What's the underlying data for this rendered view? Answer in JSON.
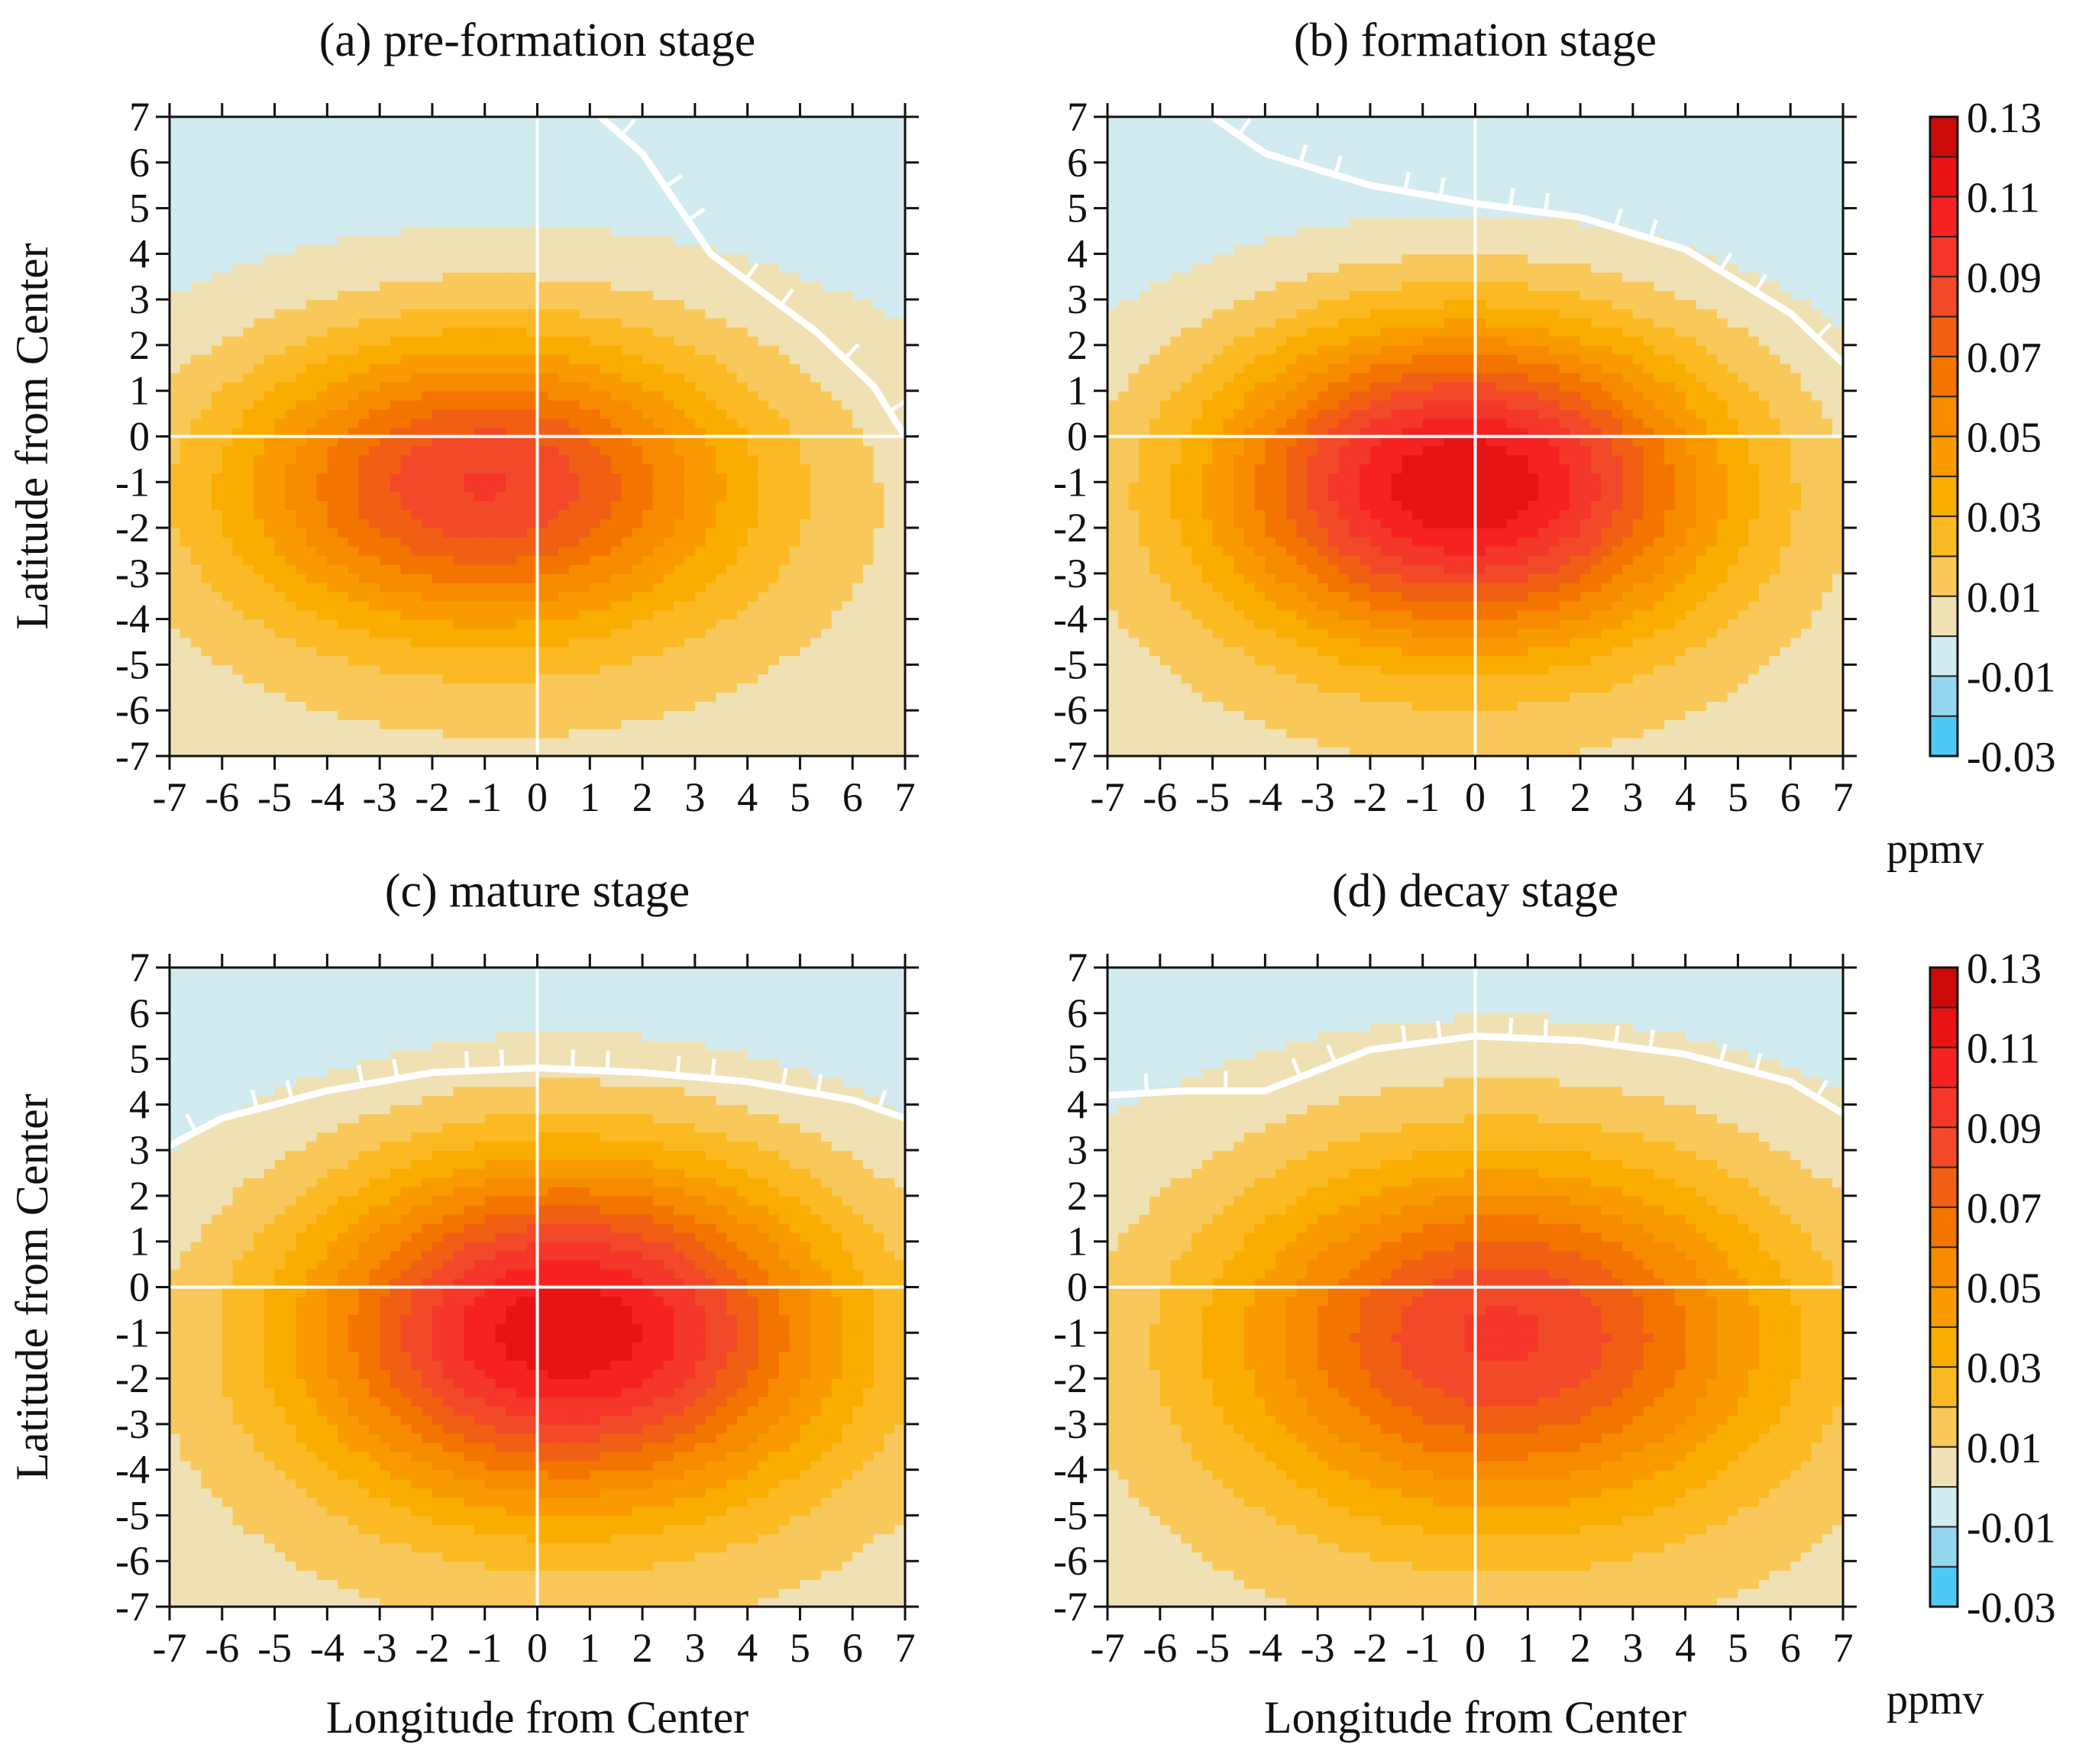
{
  "chart_data": {
    "type": "heatmap",
    "units": "ppmv",
    "x_axis_label": "Longitude from Center",
    "y_axis_label": "Latitude from Center",
    "xlim": [
      -7,
      7
    ],
    "ylim": [
      -7,
      7
    ],
    "ticks": [
      -7,
      -6,
      -5,
      -4,
      -3,
      -2,
      -1,
      0,
      1,
      2,
      3,
      4,
      5,
      6,
      7
    ],
    "colorbar": {
      "labels": [
        "0.13",
        "0.11",
        "0.09",
        "0.07",
        "0.05",
        "0.03",
        "0.01",
        "-0.01",
        "-0.03"
      ],
      "bounds": [
        -0.03,
        -0.02,
        -0.01,
        0.0,
        0.01,
        0.02,
        0.03,
        0.04,
        0.05,
        0.06,
        0.07,
        0.08,
        0.09,
        0.1,
        0.11,
        0.12,
        0.13
      ],
      "colors": [
        "#50c8f5",
        "#96d7f0",
        "#d2ebf0",
        "#f0e1b4",
        "#f8c85a",
        "#fbba23",
        "#f9ad00",
        "#f89a00",
        "#f68b00",
        "#f47400",
        "#f05f14",
        "#f24a28",
        "#f43728",
        "#f62222",
        "#e61414",
        "#cc0a0a"
      ],
      "unit_label": "ppmv"
    },
    "panels": [
      {
        "id": "a",
        "title": "(a)  pre-formation stage",
        "center": [
          -1.0,
          -1.0
        ],
        "peak": 0.091,
        "sx": 3.5,
        "sy": 2.35,
        "ky": 0.012,
        "kx": -0.002,
        "zero_contour": [
          [
            1.2,
            7.0
          ],
          [
            2.0,
            6.2
          ],
          [
            3.3,
            4.0
          ],
          [
            5.3,
            2.3
          ],
          [
            6.4,
            1.1
          ],
          [
            7.0,
            0.0
          ]
        ]
      },
      {
        "id": "b",
        "title": "(b)  formation stage",
        "center": [
          -0.2,
          -1.0
        ],
        "peak": 0.121,
        "sx": 3.4,
        "sy": 2.5,
        "ky": 0.0135,
        "kx": 0.0,
        "zero_contour": [
          [
            -5.0,
            7.0
          ],
          [
            -4.0,
            6.2
          ],
          [
            -2.0,
            5.5
          ],
          [
            0.0,
            5.1
          ],
          [
            2.0,
            4.8
          ],
          [
            4.0,
            4.1
          ],
          [
            6.0,
            2.7
          ],
          [
            7.0,
            1.6
          ]
        ]
      },
      {
        "id": "c",
        "title": "(c)  mature stage",
        "center": [
          0.6,
          -0.9
        ],
        "peak": 0.119,
        "sx": 3.6,
        "sy": 2.7,
        "ky": 0.012,
        "kx": 0.0,
        "zero_contour": [
          [
            -7.0,
            3.1
          ],
          [
            -6.0,
            3.7
          ],
          [
            -4.0,
            4.3
          ],
          [
            -2.0,
            4.7
          ],
          [
            0.0,
            4.8
          ],
          [
            2.0,
            4.7
          ],
          [
            4.0,
            4.5
          ],
          [
            6.0,
            4.1
          ],
          [
            7.0,
            3.7
          ]
        ]
      },
      {
        "id": "d",
        "title": "(d)  decay stage",
        "center": [
          0.5,
          -1.0
        ],
        "peak": 0.092,
        "sx": 3.8,
        "sy": 2.85,
        "ky": 0.0095,
        "kx": 0.0,
        "zero_contour": [
          [
            -7.0,
            4.2
          ],
          [
            -5.5,
            4.3
          ],
          [
            -4.0,
            4.3
          ],
          [
            -2.0,
            5.2
          ],
          [
            0.0,
            5.5
          ],
          [
            2.0,
            5.4
          ],
          [
            4.0,
            5.1
          ],
          [
            6.0,
            4.5
          ],
          [
            7.0,
            3.8
          ]
        ]
      }
    ]
  }
}
